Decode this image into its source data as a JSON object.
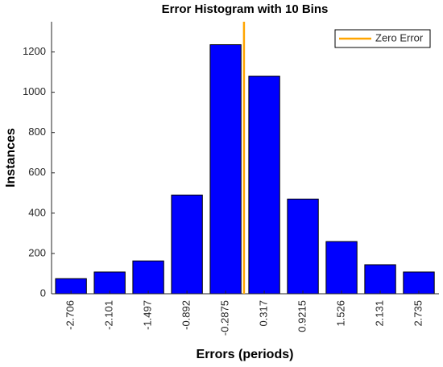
{
  "chart_data": {
    "type": "histogram",
    "title": "Error Histogram with 10 Bins",
    "xlabel": "Errors (periods)",
    "ylabel": "Instances",
    "x": [
      -2.706,
      -2.101,
      -1.497,
      -0.892,
      -0.2875,
      0.317,
      0.9215,
      1.526,
      2.131,
      2.735
    ],
    "values": [
      75,
      108,
      163,
      490,
      1236,
      1080,
      470,
      259,
      144,
      108
    ],
    "color": "#0000ff",
    "xlim": [
      -3.01,
      3.05
    ],
    "ylim": [
      0,
      1350
    ],
    "yticks": [
      0,
      200,
      400,
      600,
      800,
      1000,
      1200
    ],
    "zero_line": {
      "name": "Zero Error",
      "x": 0,
      "color": "#ffa500"
    },
    "legend": "top-right"
  }
}
